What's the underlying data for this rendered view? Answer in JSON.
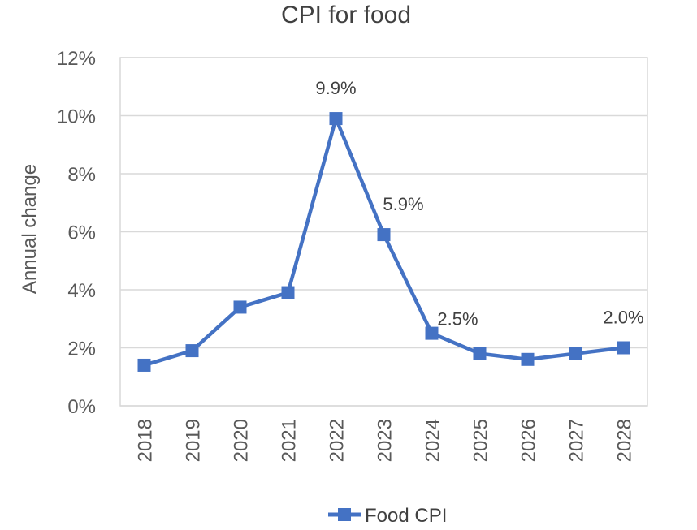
{
  "chart_data": {
    "type": "line",
    "title": "CPI for food",
    "xlabel": "",
    "ylabel": "Annual change",
    "ylim": [
      0,
      12
    ],
    "y_unit": "%",
    "yticks": [
      "0%",
      "2%",
      "4%",
      "6%",
      "8%",
      "10%",
      "12%"
    ],
    "categories": [
      "2018",
      "2019",
      "2020",
      "2021",
      "2022",
      "2023",
      "2024",
      "2025",
      "2026",
      "2027",
      "2028"
    ],
    "series": [
      {
        "name": "Food CPI",
        "color": "#4472c4",
        "values": [
          1.4,
          1.9,
          3.4,
          3.9,
          9.9,
          5.9,
          2.5,
          1.8,
          1.6,
          1.8,
          2.0
        ]
      }
    ],
    "data_labels": [
      {
        "category": "2022",
        "text": "9.9%"
      },
      {
        "category": "2023",
        "text": "5.9%"
      },
      {
        "category": "2024",
        "text": "2.5%"
      },
      {
        "category": "2028",
        "text": "2.0%"
      }
    ],
    "grid": true,
    "legend": "bottom"
  }
}
